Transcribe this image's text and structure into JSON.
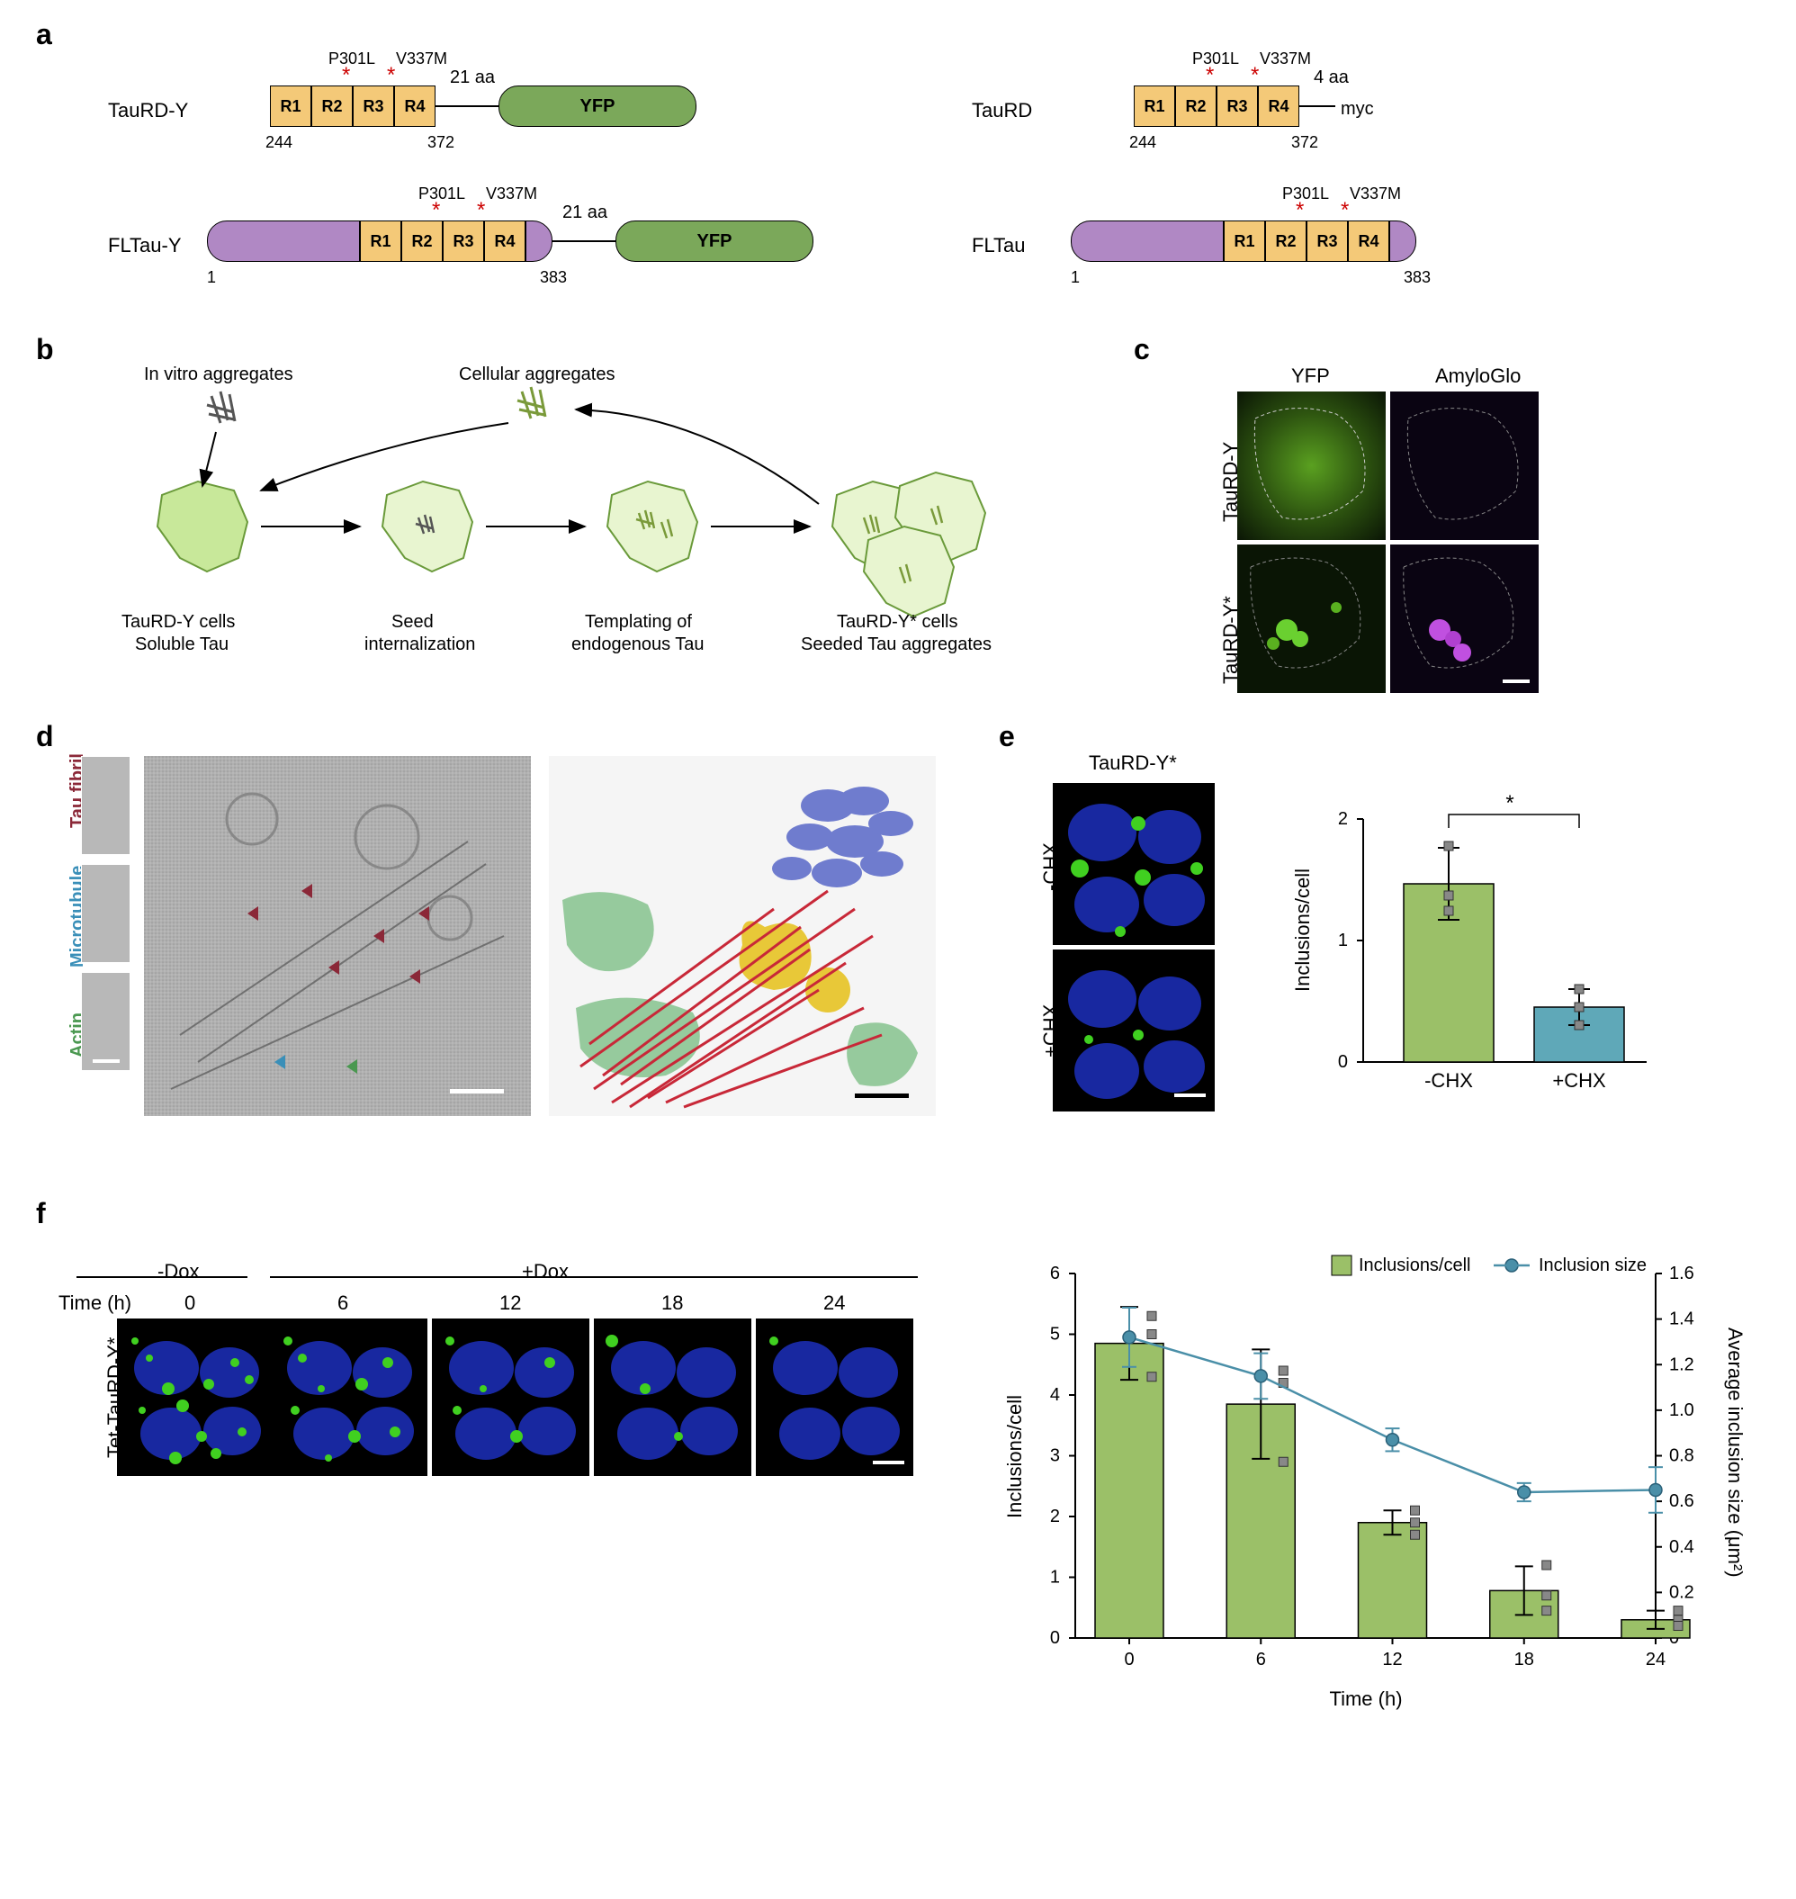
{
  "panels": {
    "a": {
      "label": "a"
    },
    "b": {
      "label": "b"
    },
    "c": {
      "label": "c"
    },
    "d": {
      "label": "d"
    },
    "e": {
      "label": "e"
    },
    "f": {
      "label": "f"
    }
  },
  "constructs": {
    "taurd_y": {
      "name": "TauRD-Y",
      "repeats": [
        "R1",
        "R2",
        "R3",
        "R4"
      ],
      "mutations": [
        "P301L",
        "V337M"
      ],
      "linker": "21 aa",
      "tag": "YFP",
      "start": "244",
      "end": "372"
    },
    "taurd": {
      "name": "TauRD",
      "repeats": [
        "R1",
        "R2",
        "R3",
        "R4"
      ],
      "mutations": [
        "P301L",
        "V337M"
      ],
      "linker": "4 aa",
      "tag": "myc",
      "start": "244",
      "end": "372"
    },
    "fltau_y": {
      "name": "FLTau-Y",
      "repeats": [
        "R1",
        "R2",
        "R3",
        "R4"
      ],
      "mutations": [
        "P301L",
        "V337M"
      ],
      "linker": "21 aa",
      "tag": "YFP",
      "start": "1",
      "end": "383"
    },
    "fltau": {
      "name": "FLTau",
      "repeats": [
        "R1",
        "R2",
        "R3",
        "R4"
      ],
      "mutations": [
        "P301L",
        "V337M"
      ],
      "start": "1",
      "end": "383"
    }
  },
  "panel_b": {
    "labels": {
      "invitro": "In vitro aggregates",
      "cellular": "Cellular aggregates",
      "step1a": "TauRD-Y cells",
      "step1b": "Soluble Tau",
      "step2a": "Seed",
      "step2b": "internalization",
      "step3a": "Templating of",
      "step3b": "endogenous Tau",
      "step4a": "TauRD-Y* cells",
      "step4b": "Seeded Tau aggregates"
    }
  },
  "panel_c": {
    "col1": "YFP",
    "col2": "AmyloGlo",
    "row1": "TauRD-Y",
    "row2": "TauRD-Y*"
  },
  "panel_d": {
    "labels": {
      "fibril": "Tau fibril",
      "microtubule": "Microtubule",
      "actin": "Actin"
    },
    "colors": {
      "fibril": "#8b2838",
      "microtubule": "#3a8fb8",
      "actin": "#4a9850",
      "er": "#5868c8",
      "autophagosome": "#e8c838",
      "membrane": "#6eb878"
    }
  },
  "panel_e": {
    "title": "TauRD-Y*",
    "conditions": [
      "-CHX",
      "+CHX"
    ],
    "ylabel": "Inclusions/cell",
    "sig": "*",
    "chart": {
      "type": "bar",
      "categories": [
        "-CHX",
        "+CHX"
      ],
      "values": [
        1.47,
        0.45
      ],
      "errors": [
        0.3,
        0.15
      ],
      "colors": [
        "#9bc068",
        "#5fa8b8"
      ],
      "ylim": [
        0,
        2
      ],
      "yticks": [
        0,
        1,
        2
      ],
      "data_points": {
        "-CHX": [
          1.25,
          1.38,
          1.78
        ],
        "+CHX": [
          0.3,
          0.45,
          0.6
        ]
      }
    }
  },
  "panel_f": {
    "row_label": "Tet-TauRD-Y*",
    "conditions": {
      "minus": "-Dox",
      "plus": "+Dox"
    },
    "time_label": "Time (h)",
    "timepoints": [
      "0",
      "6",
      "12",
      "18",
      "24"
    ],
    "chart": {
      "type": "bar_line_combo",
      "xlabel": "Time (h)",
      "ylabel_left": "Inclusions/cell",
      "ylabel_right": "Average inclusion size (μm²)",
      "legend": {
        "bar": "Inclusions/cell",
        "line": "Inclusion size"
      },
      "x": [
        0,
        6,
        12,
        18,
        24
      ],
      "bar_values": [
        4.85,
        3.85,
        1.9,
        0.78,
        0.3
      ],
      "bar_errors": [
        0.6,
        0.9,
        0.2,
        0.4,
        0.15
      ],
      "bar_color": "#9bc068",
      "bar_points": {
        "0": [
          5.3,
          5.0,
          4.3
        ],
        "6": [
          4.4,
          4.2,
          2.9
        ],
        "12": [
          2.1,
          1.9,
          1.7
        ],
        "18": [
          1.2,
          0.7,
          0.45
        ],
        "24": [
          0.45,
          0.3,
          0.2
        ]
      },
      "line_values": [
        1.32,
        1.15,
        0.87,
        0.64,
        0.65
      ],
      "line_errors": [
        0.13,
        0.1,
        0.05,
        0.04,
        0.1
      ],
      "line_color": "#4a8fa8",
      "ylim_left": [
        0,
        6
      ],
      "yticks_left": [
        0,
        1,
        2,
        3,
        4,
        5,
        6
      ],
      "ylim_right": [
        0,
        1.6
      ],
      "yticks_right": [
        "0",
        "0.2",
        "0.4",
        "0.6",
        "0.8",
        "1.0",
        "1.2",
        "1.4",
        "1.6"
      ]
    }
  },
  "colors": {
    "repeat_box": "#f4c978",
    "yfp": "#7ba85a",
    "flanking": "#b088c4",
    "star": "#cc0000",
    "bar_green": "#9bc068",
    "bar_teal": "#5fa8b8"
  }
}
